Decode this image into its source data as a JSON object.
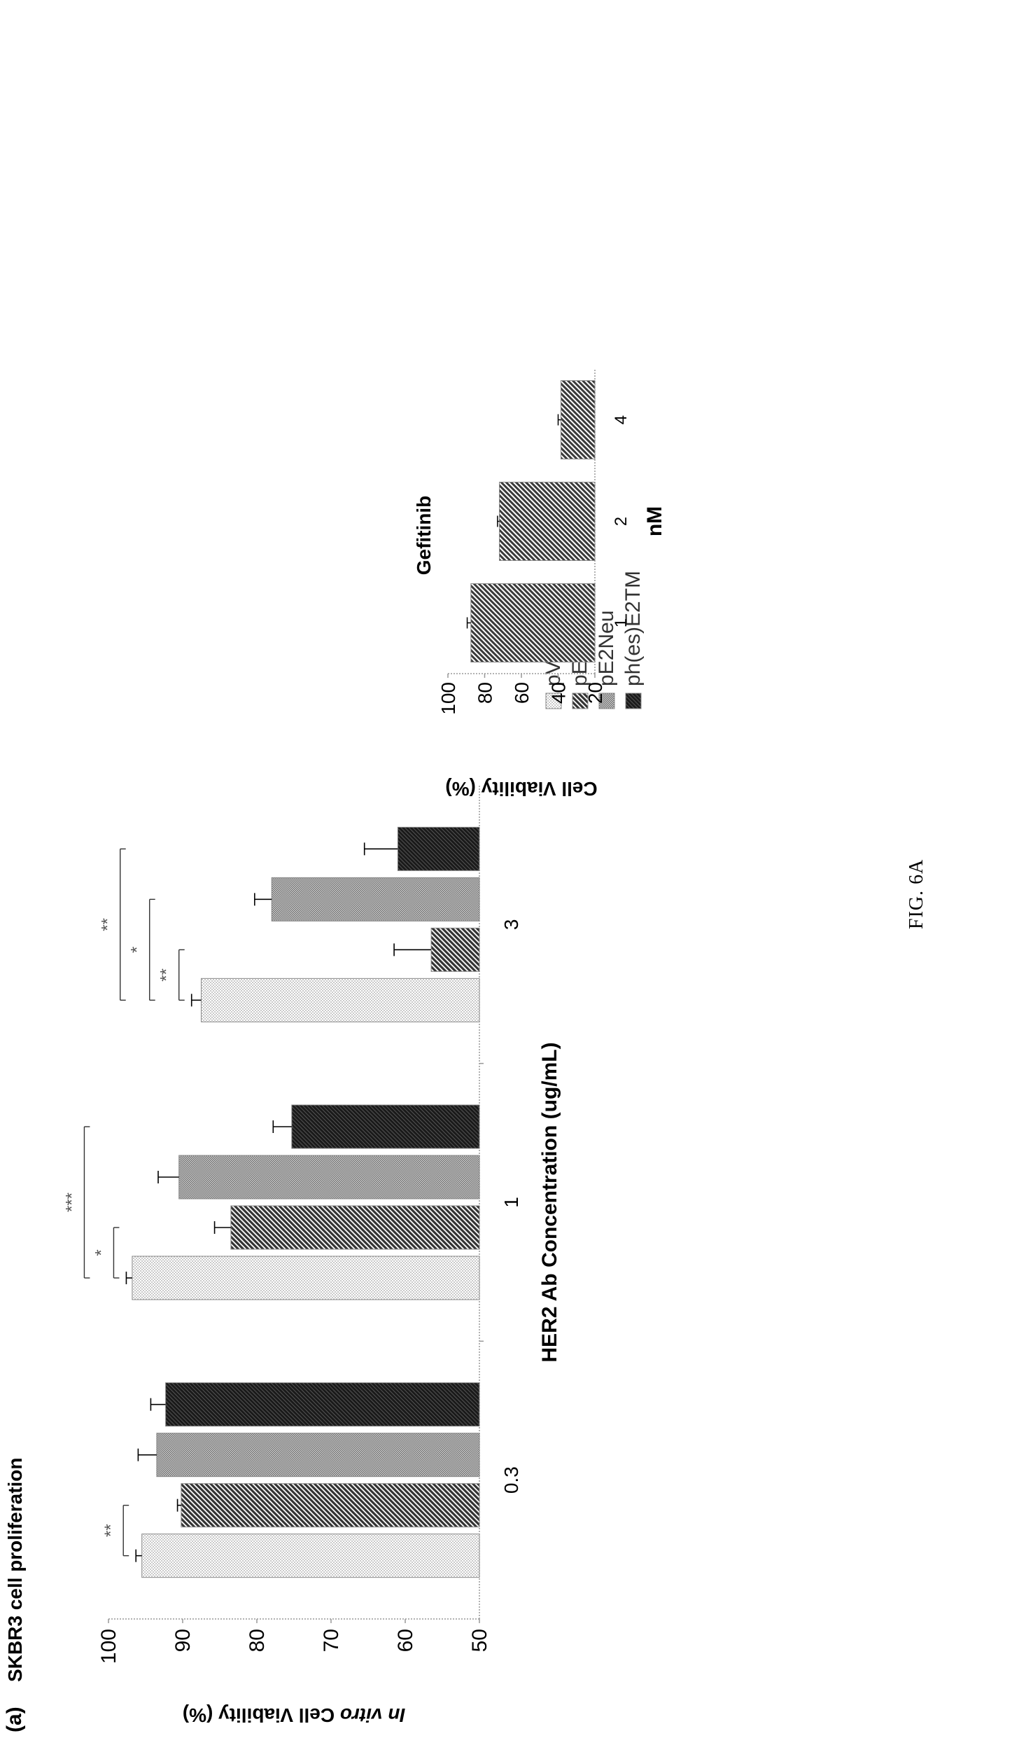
{
  "figure": {
    "panel_label": "(a)",
    "caption": "FIG. 6A"
  },
  "chart_data": [
    {
      "type": "bar",
      "title": "SKBR3 cell proliferation",
      "xlabel": "HER2 Ab Concentration (ug/mL)",
      "ylabel": "In vitro Cell Viability (%)",
      "ylabel_italic": "In vitro",
      "ylabel_rest": " Cell Viability (%)",
      "categories": [
        "0.3",
        "1",
        "3"
      ],
      "ylim": [
        50,
        100
      ],
      "yticks": [
        50,
        60,
        70,
        80,
        90,
        100
      ],
      "series": [
        {
          "name": "pVax",
          "values": [
            95.5,
            96.8,
            87.5
          ],
          "errors": [
            0.8,
            0.8,
            1.3
          ],
          "color": "#d9d9d9"
        },
        {
          "name": "pE2TM",
          "values": [
            90.2,
            83.5,
            56.5
          ],
          "errors": [
            0.5,
            2.2,
            5.0
          ],
          "color": "#595959"
        },
        {
          "name": "pE2Neu",
          "values": [
            93.5,
            90.5,
            78.0
          ],
          "errors": [
            2.5,
            2.8,
            2.3
          ],
          "color": "#a6a6a6"
        },
        {
          "name": "ph(es)E2TM",
          "values": [
            92.3,
            75.3,
            61.0
          ],
          "errors": [
            2.0,
            2.5,
            4.5
          ],
          "color": "#404040"
        }
      ],
      "significance": [
        {
          "label": "**",
          "category": "0.3",
          "from": "pVax",
          "to": "pE2TM"
        },
        {
          "label": "*",
          "category": "1",
          "from": "pVax",
          "to": "pE2TM"
        },
        {
          "label": "***",
          "category": "1",
          "from": "pVax",
          "to": "ph(es)E2TM"
        },
        {
          "label": "**",
          "category": "3",
          "from": "pVax",
          "to": "pE2TM"
        },
        {
          "label": "*",
          "category": "3",
          "from": "pVax",
          "to": "pE2Neu"
        },
        {
          "label": "**",
          "category": "3",
          "from": "pVax",
          "to": "ph(es)E2TM"
        }
      ],
      "legend_position": "right"
    },
    {
      "type": "bar",
      "title": "Gefitinib",
      "xlabel": "nM",
      "ylabel": "Cell Viability (%)",
      "categories": [
        "1",
        "2",
        "4"
      ],
      "ylim": [
        20,
        100
      ],
      "yticks": [
        20,
        40,
        60,
        80,
        100
      ],
      "values": [
        87.5,
        72.0,
        38.5
      ],
      "errors": [
        2.0,
        1.0,
        1.5
      ],
      "color": "#595959"
    }
  ]
}
